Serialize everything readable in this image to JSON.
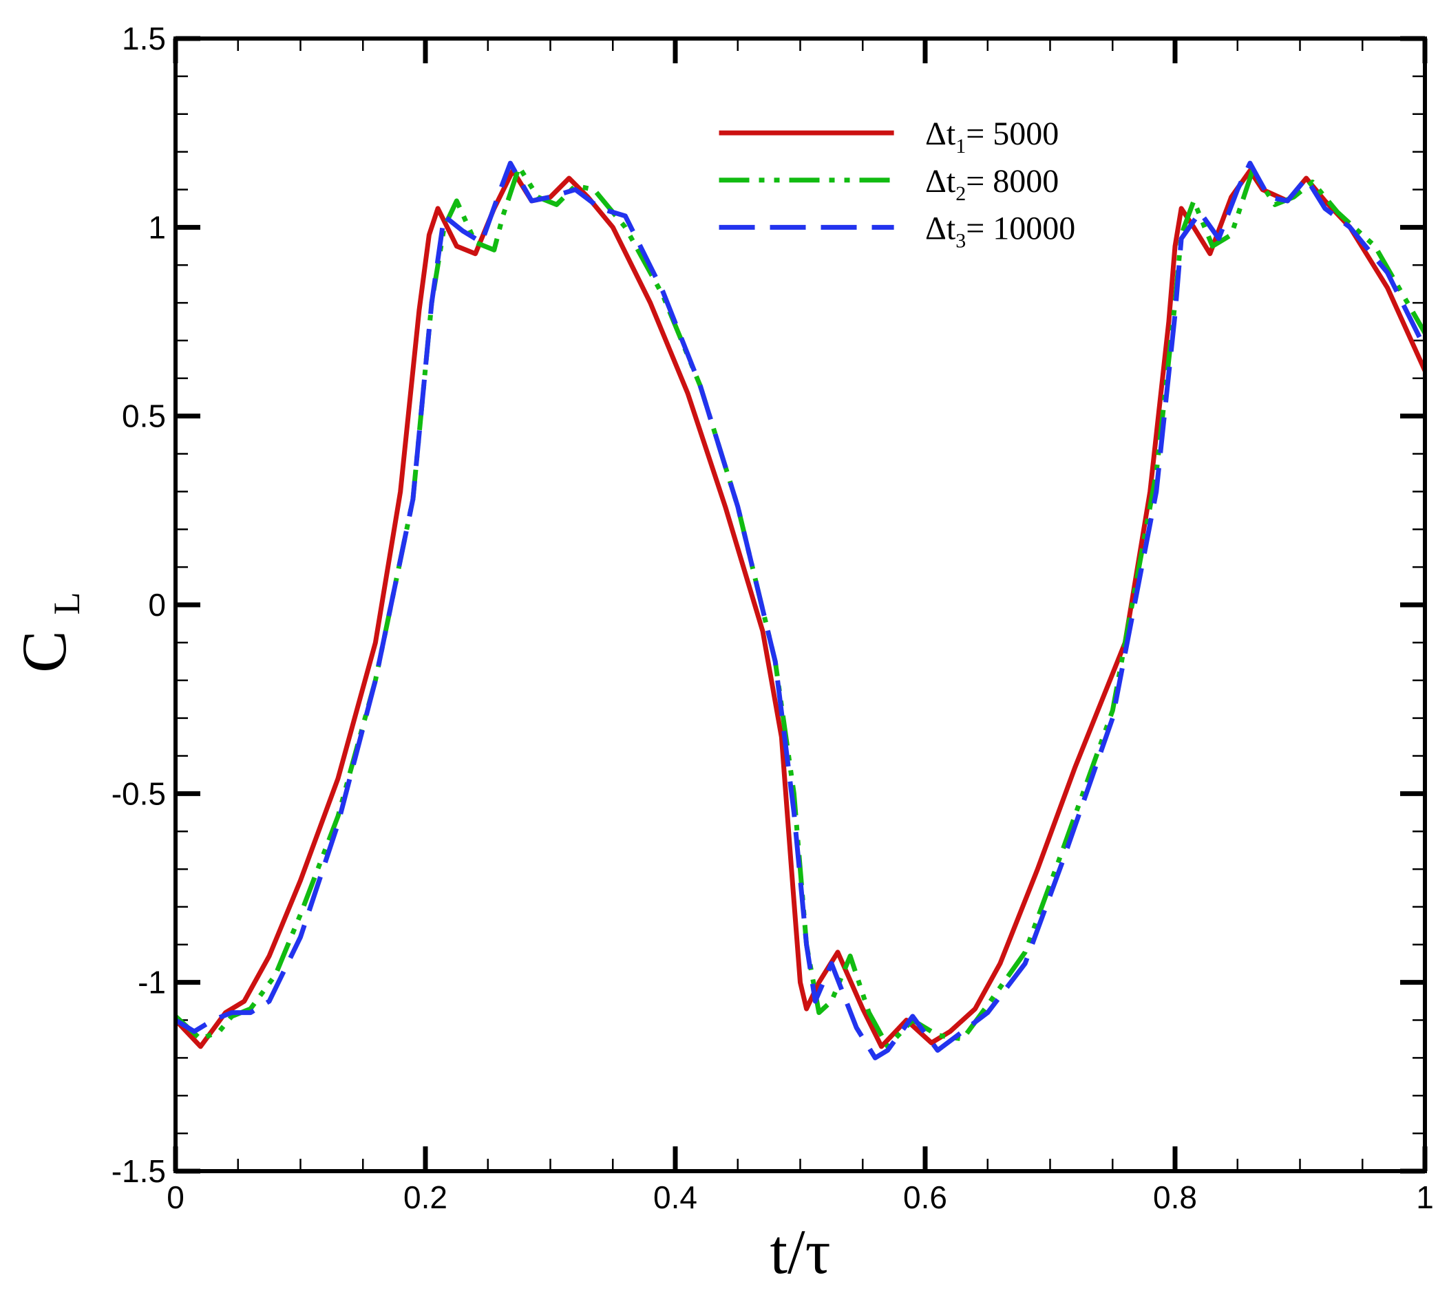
{
  "chart_data": {
    "type": "line",
    "xlabel": "t/τ",
    "ylabel": {
      "main": "C",
      "sub": "L"
    },
    "xlim": [
      0,
      1
    ],
    "ylim": [
      -1.5,
      1.5
    ],
    "x_ticks": [
      0,
      0.2,
      0.4,
      0.6,
      0.8,
      1
    ],
    "x_tick_labels": [
      "0",
      "0.2",
      "0.4",
      "0.6",
      "0.8",
      "1"
    ],
    "y_ticks": [
      -1.5,
      -1,
      -0.5,
      0,
      0.5,
      1,
      1.5
    ],
    "y_tick_labels": [
      "-1.5",
      "-1",
      "-0.5",
      "0",
      "0.5",
      "1",
      "1.5"
    ],
    "grid": false,
    "legend_position": "top-right",
    "series": [
      {
        "name": "Δt1= 5000",
        "legend": {
          "pre": "Δt",
          "sub": "1",
          "post": "= 5000"
        },
        "color": "#cc1111",
        "dash": "solid",
        "x": [
          0,
          0.02,
          0.04,
          0.055,
          0.075,
          0.1,
          0.13,
          0.16,
          0.18,
          0.195,
          0.203,
          0.21,
          0.225,
          0.24,
          0.255,
          0.27,
          0.285,
          0.3,
          0.315,
          0.33,
          0.35,
          0.38,
          0.41,
          0.44,
          0.47,
          0.485,
          0.493,
          0.5,
          0.505,
          0.515,
          0.53,
          0.55,
          0.565,
          0.585,
          0.605,
          0.62,
          0.64,
          0.66,
          0.69,
          0.72,
          0.76,
          0.78,
          0.795,
          0.8,
          0.805,
          0.815,
          0.828,
          0.845,
          0.86,
          0.87,
          0.89,
          0.905,
          0.92,
          0.94,
          0.97,
          1.0
        ],
        "y": [
          -1.1,
          -1.17,
          -1.08,
          -1.05,
          -0.93,
          -0.73,
          -0.46,
          -0.1,
          0.3,
          0.78,
          0.98,
          1.05,
          0.95,
          0.93,
          1.05,
          1.15,
          1.07,
          1.08,
          1.13,
          1.08,
          1.0,
          0.8,
          0.56,
          0.26,
          -0.07,
          -0.35,
          -0.7,
          -1.0,
          -1.07,
          -1.0,
          -0.92,
          -1.07,
          -1.17,
          -1.1,
          -1.16,
          -1.13,
          -1.07,
          -0.95,
          -0.7,
          -0.43,
          -0.1,
          0.3,
          0.75,
          0.95,
          1.05,
          1.0,
          0.93,
          1.08,
          1.15,
          1.1,
          1.07,
          1.13,
          1.07,
          1.0,
          0.84,
          0.62
        ]
      },
      {
        "name": "Δt2= 8000",
        "legend": {
          "pre": "Δt",
          "sub": "2",
          "post": "= 8000"
        },
        "color": "#11bb11",
        "dash": "dashdotdot",
        "x": [
          0,
          0.02,
          0.035,
          0.045,
          0.06,
          0.08,
          0.1,
          0.13,
          0.16,
          0.19,
          0.205,
          0.215,
          0.225,
          0.24,
          0.255,
          0.262,
          0.275,
          0.29,
          0.305,
          0.32,
          0.335,
          0.36,
          0.39,
          0.42,
          0.45,
          0.48,
          0.495,
          0.505,
          0.515,
          0.525,
          0.54,
          0.555,
          0.57,
          0.59,
          0.61,
          0.63,
          0.65,
          0.68,
          0.71,
          0.75,
          0.785,
          0.8,
          0.805,
          0.815,
          0.83,
          0.845,
          0.862,
          0.88,
          0.895,
          0.91,
          0.93,
          0.96,
          1.0
        ],
        "y": [
          -1.09,
          -1.15,
          -1.13,
          -1.09,
          -1.07,
          -0.98,
          -0.82,
          -0.56,
          -0.2,
          0.28,
          0.8,
          1.0,
          1.07,
          0.96,
          0.94,
          1.03,
          1.16,
          1.08,
          1.06,
          1.11,
          1.1,
          1.0,
          0.82,
          0.58,
          0.26,
          -0.15,
          -0.5,
          -0.9,
          -1.08,
          -1.05,
          -0.93,
          -1.08,
          -1.17,
          -1.1,
          -1.14,
          -1.15,
          -1.06,
          -0.92,
          -0.65,
          -0.28,
          0.35,
          0.8,
          0.98,
          1.07,
          0.95,
          0.98,
          1.15,
          1.06,
          1.08,
          1.12,
          1.04,
          0.95,
          0.72
        ]
      },
      {
        "name": "Δt3= 10000",
        "legend": {
          "pre": "Δt",
          "sub": "3",
          "post": "= 10000"
        },
        "color": "#2233ee",
        "dash": "dashed",
        "x": [
          0,
          0.015,
          0.03,
          0.045,
          0.06,
          0.075,
          0.1,
          0.13,
          0.16,
          0.19,
          0.205,
          0.215,
          0.23,
          0.245,
          0.26,
          0.268,
          0.285,
          0.3,
          0.32,
          0.34,
          0.36,
          0.39,
          0.42,
          0.45,
          0.48,
          0.495,
          0.505,
          0.512,
          0.525,
          0.545,
          0.56,
          0.57,
          0.59,
          0.61,
          0.63,
          0.65,
          0.68,
          0.71,
          0.75,
          0.785,
          0.8,
          0.805,
          0.82,
          0.835,
          0.85,
          0.86,
          0.875,
          0.89,
          0.905,
          0.92,
          0.94,
          0.97,
          1.0
        ],
        "y": [
          -1.1,
          -1.13,
          -1.1,
          -1.08,
          -1.08,
          -1.05,
          -0.88,
          -0.58,
          -0.2,
          0.28,
          0.8,
          1.03,
          0.99,
          0.96,
          1.1,
          1.17,
          1.07,
          1.08,
          1.1,
          1.05,
          1.03,
          0.83,
          0.58,
          0.26,
          -0.15,
          -0.55,
          -0.9,
          -1.05,
          -0.95,
          -1.12,
          -1.2,
          -1.18,
          -1.09,
          -1.18,
          -1.13,
          -1.08,
          -0.95,
          -0.68,
          -0.3,
          0.3,
          0.77,
          0.97,
          1.04,
          0.97,
          1.1,
          1.17,
          1.08,
          1.07,
          1.13,
          1.05,
          1.0,
          0.88,
          0.68
        ]
      }
    ]
  }
}
